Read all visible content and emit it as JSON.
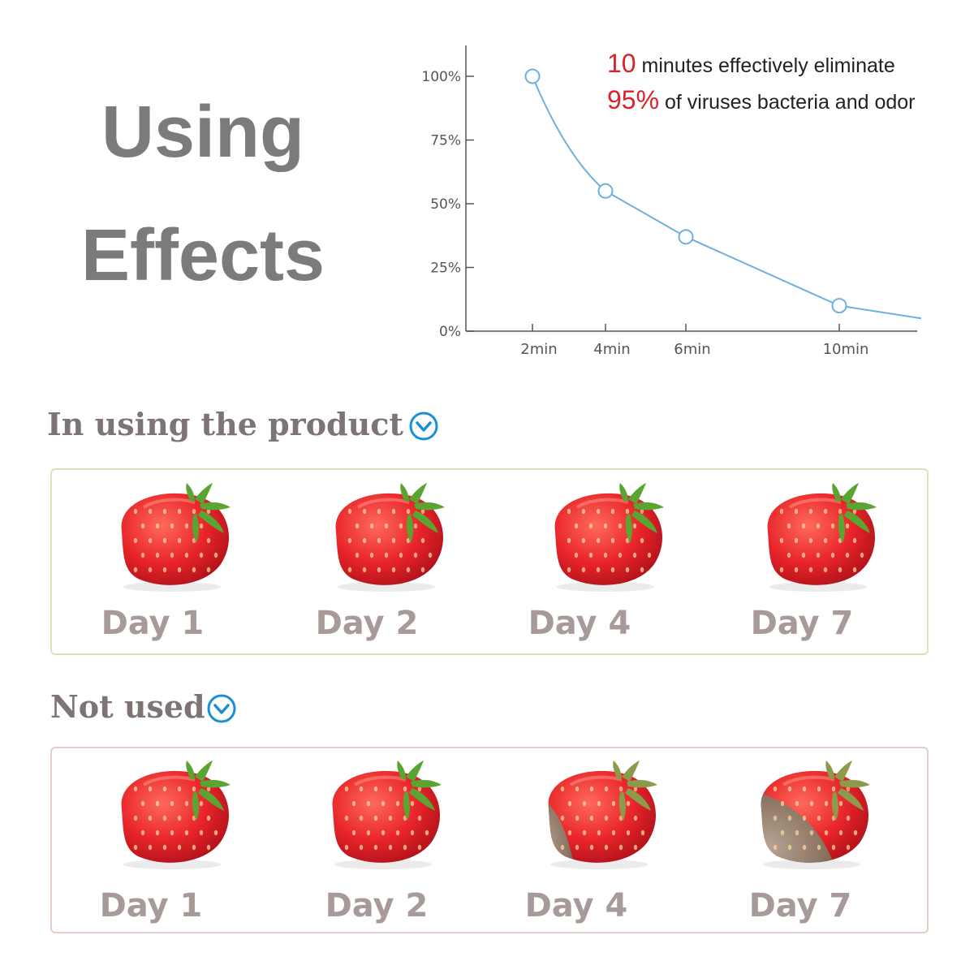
{
  "headline": {
    "line1": "Using",
    "line2": "Effects"
  },
  "annotation": {
    "line1_highlight": "10",
    "line1_text": " minutes effectively eliminate",
    "line2_highlight": "95%",
    "line2_text": " of viruses bacteria and odor"
  },
  "chart_data": {
    "type": "line",
    "x": [
      "2min",
      "4min",
      "6min",
      "10min"
    ],
    "series": [
      {
        "values": [
          100,
          55,
          37,
          10
        ]
      }
    ],
    "trailing_value": 5,
    "yticks": [
      "0%",
      "25%",
      "50%",
      "75%",
      "100%"
    ],
    "xlabel": "",
    "ylabel": "",
    "ylim": [
      0,
      100
    ],
    "grid": false,
    "line_color": "#6fb0de"
  },
  "sections": {
    "using": {
      "title": "In using the product",
      "days": [
        "Day 1",
        "Day 2",
        "Day 4",
        "Day 7"
      ],
      "mold_levels": [
        0,
        0,
        0,
        0
      ]
    },
    "not_used": {
      "title": "Not used",
      "days": [
        "Day 1",
        "Day 2",
        "Day 4",
        "Day 7"
      ],
      "mold_levels": [
        0,
        0.05,
        0.3,
        0.6
      ]
    }
  },
  "colors": {
    "accent": "#1a8ed6",
    "headline": "#7b7b7b",
    "highlight": "#d8232a",
    "label": "#a79a98"
  }
}
